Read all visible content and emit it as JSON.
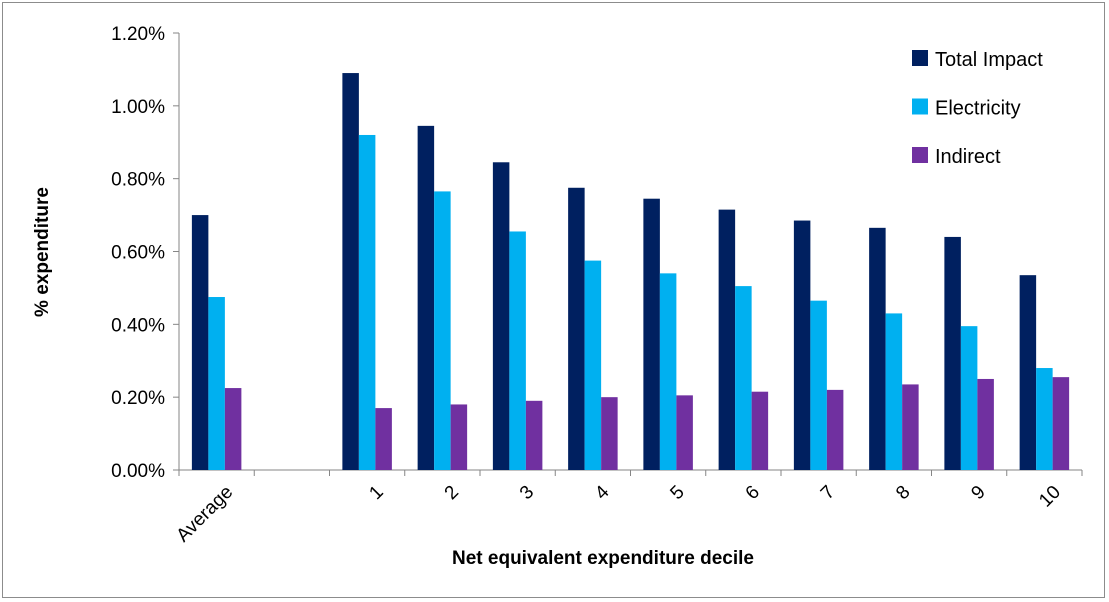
{
  "chart_data": {
    "type": "bar",
    "title": "",
    "xlabel": "Net equivalent expenditure decile",
    "ylabel": "% expenditure",
    "categories": [
      "Average",
      "",
      "1",
      "2",
      "3",
      "4",
      "5",
      "6",
      "7",
      "8",
      "9",
      "10"
    ],
    "series": [
      {
        "name": "Total Impact",
        "color": "#002060",
        "values": [
          0.7,
          null,
          1.09,
          0.945,
          0.845,
          0.775,
          0.745,
          0.715,
          0.685,
          0.665,
          0.64,
          0.535
        ]
      },
      {
        "name": "Electricity",
        "color": "#00B0F0",
        "values": [
          0.475,
          null,
          0.92,
          0.765,
          0.655,
          0.575,
          0.54,
          0.505,
          0.465,
          0.43,
          0.395,
          0.28
        ]
      },
      {
        "name": "Indirect",
        "color": "#7030A0",
        "values": [
          0.225,
          null,
          0.17,
          0.18,
          0.19,
          0.2,
          0.205,
          0.215,
          0.22,
          0.235,
          0.25,
          0.255
        ]
      }
    ],
    "ylim": [
      0,
      1.2
    ],
    "yticks": [
      0,
      0.2,
      0.4,
      0.6,
      0.8,
      1.0,
      1.2
    ],
    "ytick_labels": [
      "0.00%",
      "0.20%",
      "0.40%",
      "0.60%",
      "0.80%",
      "1.00%",
      "1.20%"
    ],
    "grid": false,
    "legend_position": "top-right"
  }
}
